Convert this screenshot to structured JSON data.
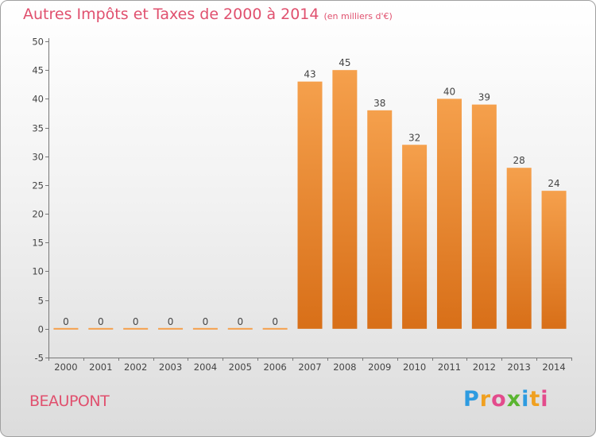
{
  "chart_data": {
    "type": "bar",
    "title": "Autres Impôts et Taxes de 2000 à 2014",
    "subtitle": "(en milliers d'€)",
    "categories": [
      "2000",
      "2001",
      "2002",
      "2003",
      "2004",
      "2005",
      "2006",
      "2007",
      "2008",
      "2009",
      "2010",
      "2011",
      "2012",
      "2013",
      "2014"
    ],
    "values": [
      0,
      0,
      0,
      0,
      0,
      0,
      0,
      43,
      45,
      38,
      32,
      40,
      39,
      28,
      24
    ],
    "value_labels": [
      "0",
      "0",
      "0",
      "0",
      "0",
      "0",
      "0",
      "43",
      "45",
      "38",
      "32",
      "40",
      "39",
      "28",
      "24"
    ],
    "ylim": [
      -5,
      50
    ],
    "yticks": [
      -5,
      0,
      5,
      10,
      15,
      20,
      25,
      30,
      35,
      40,
      45,
      50
    ],
    "ytick_labels": [
      "-5",
      "0",
      "5",
      "10",
      "15",
      "20",
      "25",
      "30",
      "35",
      "40",
      "45",
      "50"
    ],
    "grid": false,
    "bar_color": "#f5a04c",
    "bar_color_dark": "#d86f18"
  },
  "commune": "BEAUPONT",
  "brand": {
    "letters": [
      "P",
      "r",
      "o",
      "x",
      "i",
      "t",
      "i"
    ],
    "colors": [
      "#2d9be0",
      "#f0a020",
      "#e34b8c",
      "#5ab530",
      "#2d9be0",
      "#f0a020",
      "#e34b8c"
    ]
  }
}
